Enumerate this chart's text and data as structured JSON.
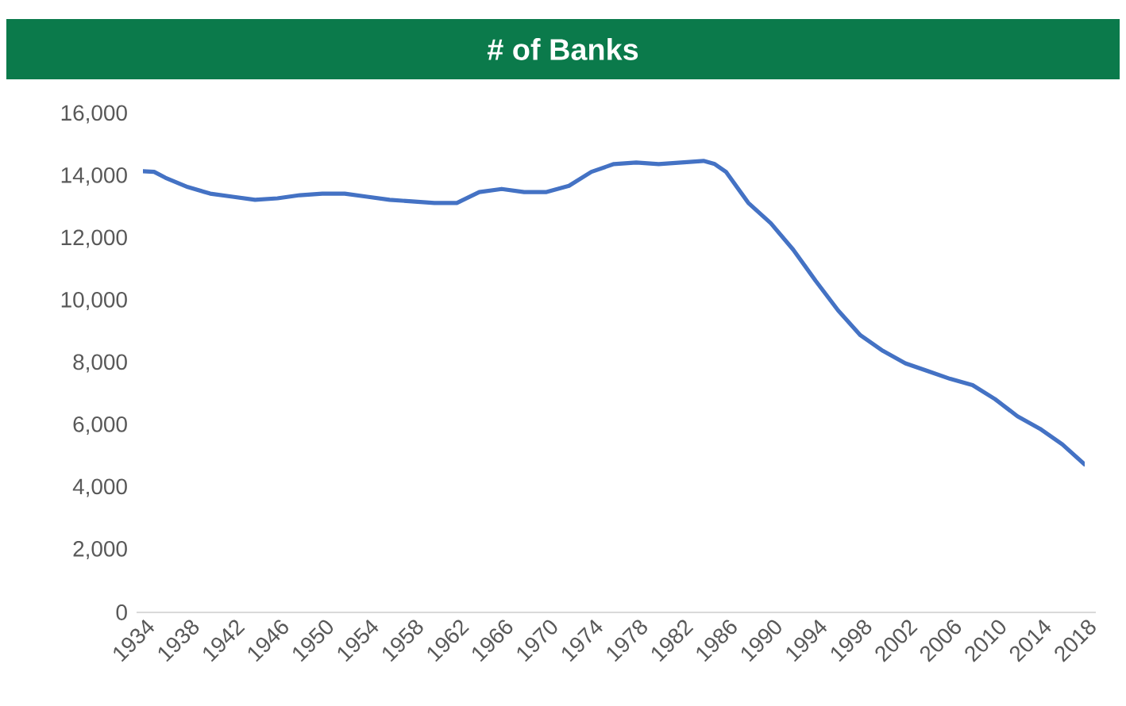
{
  "chart_data": {
    "type": "line",
    "title": "# of Banks",
    "x": [
      1934,
      1935,
      1936,
      1938,
      1940,
      1942,
      1944,
      1946,
      1948,
      1950,
      1952,
      1954,
      1956,
      1958,
      1960,
      1962,
      1964,
      1966,
      1968,
      1970,
      1972,
      1974,
      1976,
      1978,
      1980,
      1982,
      1984,
      1985,
      1986,
      1988,
      1990,
      1992,
      1994,
      1996,
      1998,
      2000,
      2002,
      2004,
      2006,
      2008,
      2010,
      2012,
      2014,
      2016,
      2018
    ],
    "series": [
      {
        "color": "#4472c4",
        "values": [
          14170,
          14150,
          13960,
          13660,
          13450,
          13350,
          13250,
          13300,
          13400,
          13450,
          13450,
          13350,
          13250,
          13200,
          13150,
          13150,
          13500,
          13600,
          13500,
          13500,
          13700,
          14150,
          14400,
          14450,
          14400,
          14450,
          14500,
          14400,
          14150,
          13150,
          12500,
          11650,
          10650,
          9700,
          8900,
          8400,
          8000,
          7750,
          7500,
          7300,
          6850,
          6300,
          5900,
          5400,
          4750
        ]
      }
    ],
    "xlim": [
      1934,
      2018
    ],
    "xticks": [
      1934,
      1938,
      1942,
      1946,
      1950,
      1954,
      1958,
      1962,
      1966,
      1970,
      1974,
      1978,
      1982,
      1986,
      1990,
      1994,
      1998,
      2002,
      2006,
      2010,
      2014,
      2018
    ],
    "ylim": [
      0,
      16000
    ],
    "yticks": [
      {
        "value": 0,
        "label": "0"
      },
      {
        "value": 2000,
        "label": "2,000"
      },
      {
        "value": 4000,
        "label": "4,000"
      },
      {
        "value": 6000,
        "label": "6,000"
      },
      {
        "value": 8000,
        "label": "8,000"
      },
      {
        "value": 10000,
        "label": "10,000"
      },
      {
        "value": 12000,
        "label": "12,000"
      },
      {
        "value": 14000,
        "label": "14,000"
      },
      {
        "value": 16000,
        "label": "16,000"
      }
    ],
    "grid": false
  }
}
